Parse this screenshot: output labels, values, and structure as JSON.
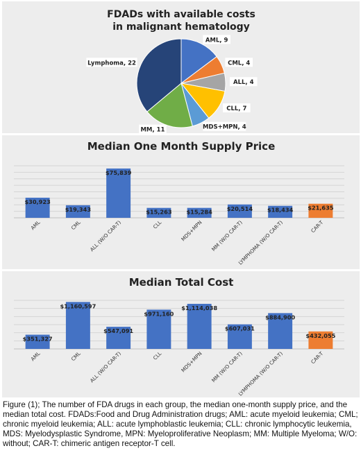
{
  "chart_data": [
    {
      "type": "pie",
      "title": "FDADs with available costs",
      "subtitle": "in malignant hematology",
      "slices": [
        {
          "label": "AML",
          "value": 9,
          "color": "#4472c4"
        },
        {
          "label": "CML",
          "value": 4,
          "color": "#ed7d31"
        },
        {
          "label": "ALL",
          "value": 4,
          "color": "#a5a5a5"
        },
        {
          "label": "CLL",
          "value": 7,
          "color": "#ffc000"
        },
        {
          "label": "MDS+MPN",
          "value": 4,
          "color": "#5b9bd5"
        },
        {
          "label": "MM",
          "value": 11,
          "color": "#70ad47"
        },
        {
          "label": "Lymphoma",
          "value": 22,
          "color": "#264478"
        }
      ],
      "slice_labels": [
        "AML, 9",
        "CML, 4",
        "ALL, 4",
        "CLL, 7",
        "MDS+MPN, 4",
        "MM, 11",
        "Lymphoma, 22"
      ]
    },
    {
      "type": "bar",
      "title": "Median One Month Supply Price",
      "categories": [
        "AML",
        "CML",
        "ALL (W/O CAR-T)",
        "CLL",
        "MDS+MPN",
        "MM (W/O CAR-T)",
        "LYMPHOMA (W/O CAR-T)",
        "CAR-T"
      ],
      "values": [
        30923,
        19343,
        75839,
        15263,
        15284,
        20514,
        18434,
        21635
      ],
      "data_labels": [
        "$30,923",
        "$19,343",
        "$75,839",
        "$15,263",
        "$15,284",
        "$20,514",
        "$18,434",
        "$21,635"
      ],
      "colors": [
        "#4472c4",
        "#4472c4",
        "#4472c4",
        "#4472c4",
        "#4472c4",
        "#4472c4",
        "#4472c4",
        "#ed7d31"
      ],
      "ylim": [
        0,
        80000
      ],
      "grid": true
    },
    {
      "type": "bar",
      "title": "Median Total Cost",
      "categories": [
        "AML",
        "CML",
        "ALL (W/O CAR-T)",
        "CLL",
        "MDS+MPN",
        "MM (W/O CAR-T)",
        "LYMPHOMA (W/O CAR-T)",
        "CAR-T"
      ],
      "values": [
        351327,
        1160597,
        547091,
        971160,
        1114038,
        607031,
        884900,
        432055
      ],
      "data_labels": [
        "$351,327",
        "$1,160,597",
        "$547,091",
        "$971,160",
        "$1,114,038",
        "$607,031",
        "$884,900",
        "$432,055"
      ],
      "colors": [
        "#4472c4",
        "#4472c4",
        "#4472c4",
        "#4472c4",
        "#4472c4",
        "#4472c4",
        "#4472c4",
        "#ed7d31"
      ],
      "ylim": [
        0,
        1200000
      ],
      "grid": true
    }
  ],
  "caption": "Figure (1); The number of FDA drugs in each group, the median one-month supply price, and the median total cost. FDADs:Food and Drug Administration drugs; AML: acute myeloid leukemia; CML; chronic myeloid leukemia; ALL: acute lymphoblastic leukemia; CLL: chronic lymphocytic leukemia, MDS: Myelodysplastic Syndrome, MPN: Myeloproliferative Neoplasm; MM: Multiple Myeloma; W/O: without; CAR-T: chimeric antigen receptor-T cell."
}
